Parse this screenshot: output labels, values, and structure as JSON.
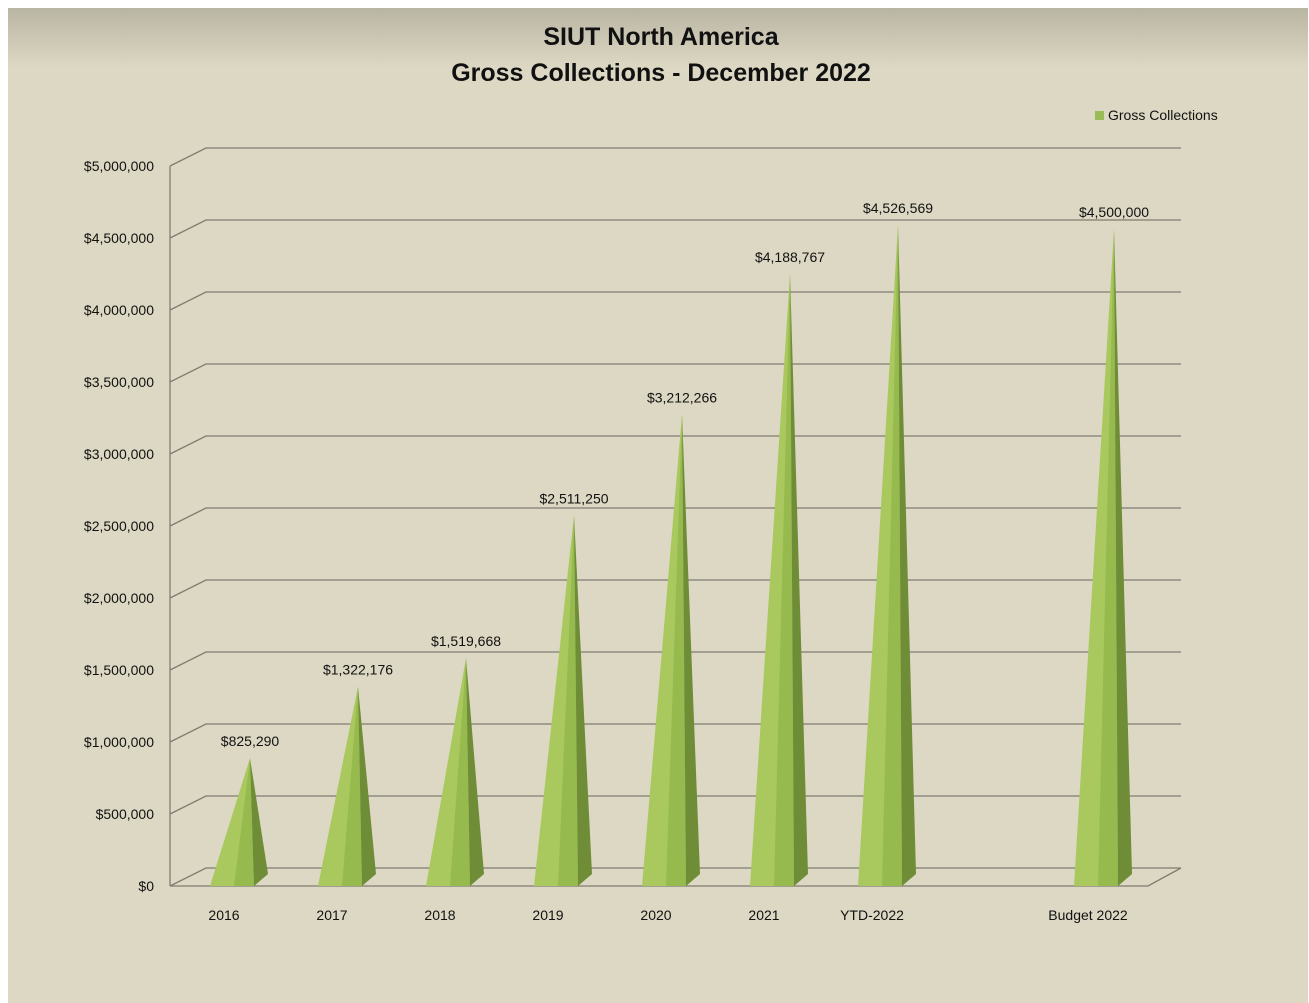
{
  "chart_data": {
    "type": "bar",
    "title": "SIUT North America",
    "subtitle": "Gross Collections - December 2022",
    "categories": [
      "2016",
      "2017",
      "2018",
      "2019",
      "2020",
      "2021",
      "YTD-2022",
      "Budget 2022"
    ],
    "series": [
      {
        "name": "Gross Collections",
        "values": [
          825290,
          1322176,
          1519668,
          2511250,
          3212266,
          4188767,
          4526569,
          4500000
        ]
      }
    ],
    "data_labels": [
      "$825,290",
      "$1,322,176",
      "$1,519,668",
      "$2,511,250",
      "$3,212,266",
      "$4,188,767",
      "$4,526,569",
      "$4,500,000"
    ],
    "y_ticks": [
      0,
      500000,
      1000000,
      1500000,
      2000000,
      2500000,
      3000000,
      3500000,
      4000000,
      4500000,
      5000000
    ],
    "y_tick_labels": [
      "$0",
      "$500,000",
      "$1,000,000",
      "$1,500,000",
      "$2,000,000",
      "$2,500,000",
      "$3,000,000",
      "$3,500,000",
      "$4,000,000",
      "$4,500,000",
      "$5,000,000"
    ],
    "ylim": [
      0,
      5000000
    ],
    "xlabel": "",
    "ylabel": "",
    "grid": true,
    "legend": "top-right",
    "bar_shape": "3d-pyramid",
    "colors": {
      "background": "#ddd8c3",
      "gridline": "#7f7c72",
      "bar_light": "#a9c95f",
      "bar_mid": "#97ba4f",
      "bar_dark": "#6f8c36",
      "legend_swatch": "#9bbb59"
    }
  }
}
